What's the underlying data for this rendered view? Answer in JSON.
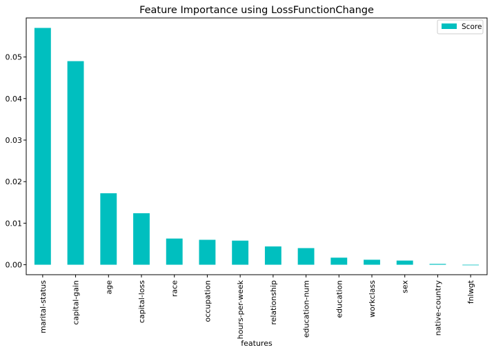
{
  "chart_data": {
    "type": "bar",
    "title": "Feature Importance using LossFunctionChange",
    "xlabel": "features",
    "ylabel": "",
    "categories": [
      "marital-status",
      "capital-gain",
      "age",
      "capital-loss",
      "race",
      "occupation",
      "hours-per-week",
      "relationship",
      "education-num",
      "education",
      "workclass",
      "sex",
      "native-country",
      "fnlwgt"
    ],
    "series": [
      {
        "name": "Score",
        "color": "#00bfbf",
        "values": [
          0.057,
          0.049,
          0.0172,
          0.0124,
          0.0063,
          0.006,
          0.0058,
          0.0044,
          0.004,
          0.0017,
          0.0012,
          0.001,
          0.0002,
          -0.0001
        ]
      }
    ],
    "ylim": [
      -0.0024,
      0.0594
    ],
    "yticks": [
      0.0,
      0.01,
      0.02,
      0.03,
      0.04,
      0.05
    ],
    "ytick_labels": [
      "0.00",
      "0.01",
      "0.02",
      "0.03",
      "0.04",
      "0.05"
    ],
    "grid": false,
    "legend_position": "top-right"
  }
}
